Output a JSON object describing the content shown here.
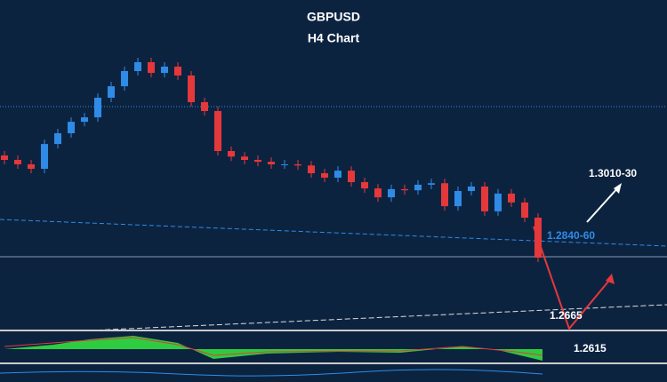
{
  "chart_data": {
    "type": "candlestick",
    "title": "GBPUSD",
    "subtitle": "H4 Chart",
    "up_color": "#2f8be6",
    "down_color": "#e5383b",
    "ylim": [
      1.2605,
      1.3493
    ],
    "open": [
      1.3073,
      1.3061,
      1.3049,
      1.3037,
      1.3104,
      1.3133,
      1.3164,
      1.3176,
      1.3229,
      1.326,
      1.3301,
      1.3325,
      1.3296,
      1.3313,
      1.3289,
      1.3217,
      1.3193,
      1.3085,
      1.307,
      1.3061,
      1.3056,
      1.3049,
      1.3049,
      1.3046,
      1.3025,
      1.3013,
      1.3032,
      1.3001,
      1.2984,
      1.296,
      1.2982,
      1.2979,
      1.2994,
      1.2998,
      1.2936,
      1.2977,
      1.2989,
      1.2922,
      1.297,
      1.2946,
      1.2905
    ],
    "high": [
      1.3085,
      1.3073,
      1.3061,
      1.3116,
      1.3145,
      1.3176,
      1.3188,
      1.3241,
      1.3272,
      1.3313,
      1.3337,
      1.3337,
      1.3325,
      1.3325,
      1.3301,
      1.3229,
      1.3205,
      1.3097,
      1.3082,
      1.3073,
      1.3068,
      1.3061,
      1.3061,
      1.3058,
      1.3037,
      1.3044,
      1.3044,
      1.3013,
      1.2996,
      1.2994,
      1.2994,
      1.3006,
      1.301,
      1.301,
      1.2989,
      1.3001,
      1.3001,
      1.2982,
      1.2982,
      1.2958,
      1.2917
    ],
    "low": [
      1.3049,
      1.3037,
      1.3025,
      1.3025,
      1.3092,
      1.3121,
      1.3152,
      1.3164,
      1.3217,
      1.3248,
      1.3289,
      1.3284,
      1.3284,
      1.3277,
      1.3205,
      1.3181,
      1.3073,
      1.3058,
      1.3049,
      1.3044,
      1.3037,
      1.3037,
      1.3034,
      1.3013,
      1.3001,
      1.3001,
      1.2989,
      1.2972,
      1.2948,
      1.2948,
      1.2967,
      1.2967,
      1.2982,
      1.2924,
      1.2924,
      1.2965,
      1.291,
      1.291,
      1.2934,
      1.2893,
      1.2785
    ],
    "close": [
      1.3061,
      1.3049,
      1.3037,
      1.3104,
      1.3133,
      1.3164,
      1.3176,
      1.3229,
      1.326,
      1.3301,
      1.3325,
      1.3296,
      1.3313,
      1.3289,
      1.3217,
      1.3193,
      1.3085,
      1.307,
      1.3061,
      1.3056,
      1.3049,
      1.3049,
      1.3046,
      1.3025,
      1.3013,
      1.3032,
      1.3001,
      1.2984,
      1.296,
      1.2982,
      1.2979,
      1.2994,
      1.2998,
      1.2936,
      1.2977,
      1.2989,
      1.2922,
      1.297,
      1.2946,
      1.2905,
      1.2797
    ],
    "annotations": [
      "1.3010-30",
      "1.2840-60",
      "1.2665",
      "1.2615"
    ]
  }
}
